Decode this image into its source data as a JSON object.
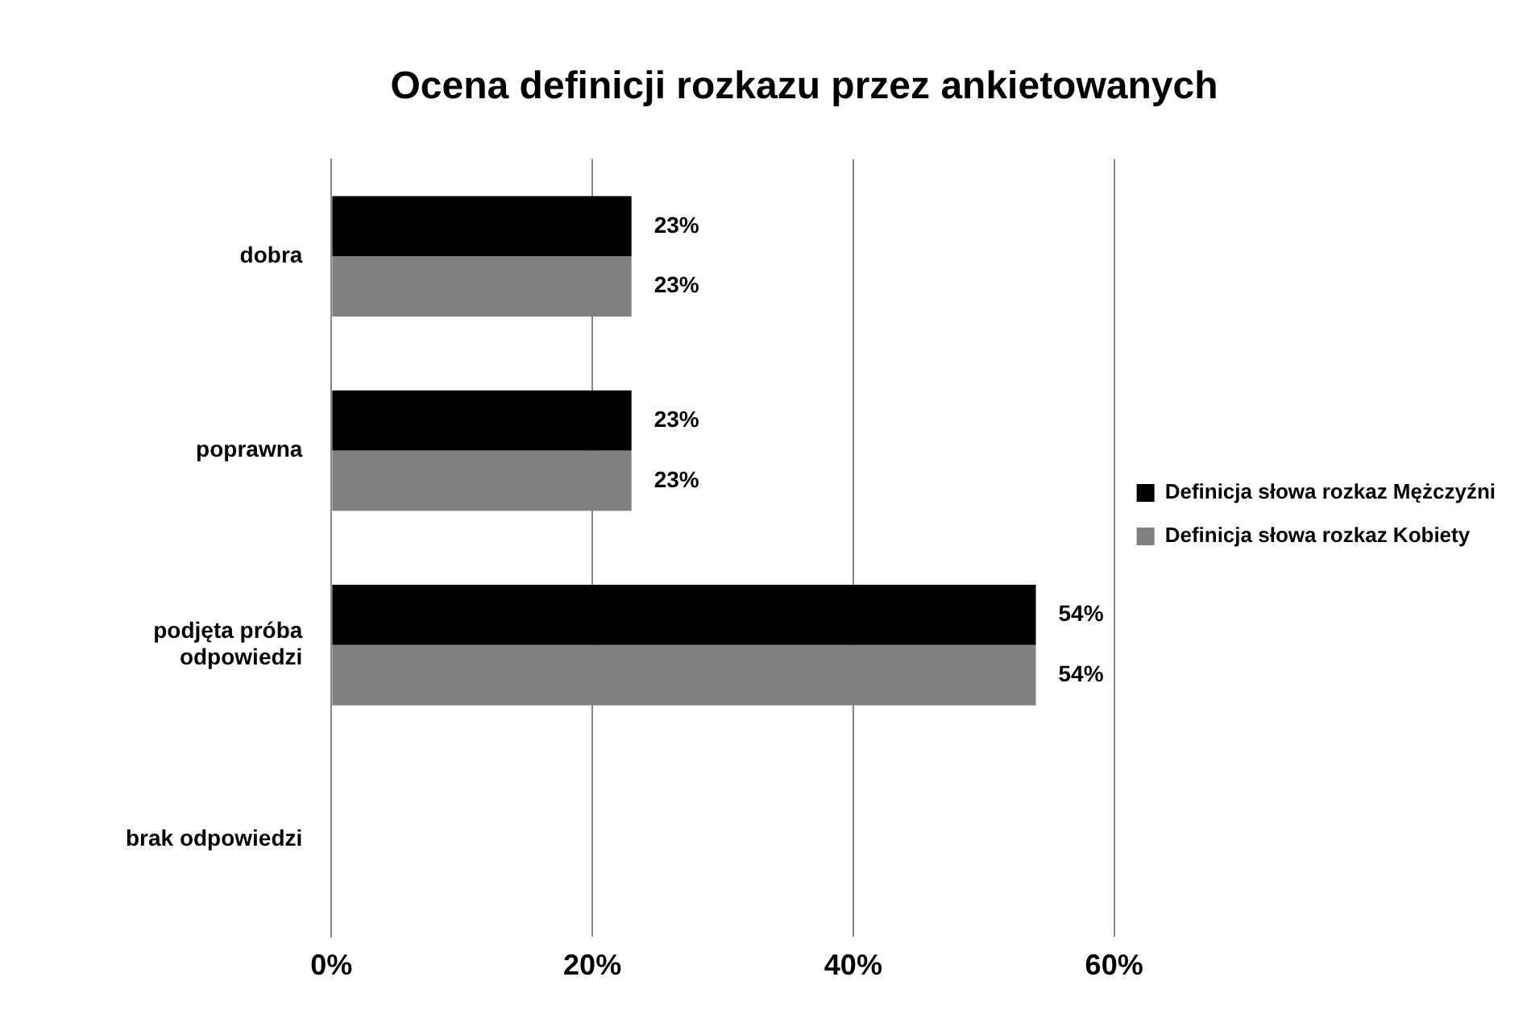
{
  "chart_data": {
    "type": "bar",
    "orientation": "horizontal",
    "title": "Ocena definicji rozkazu przez ankietowanych",
    "categories": [
      "dobra",
      "poprawna",
      "podjęta próba odpowiedzi",
      "brak odpowiedzi"
    ],
    "series": [
      {
        "name": "Definicja słowa rozkaz Mężczyźni",
        "color": "#000000",
        "values": [
          23,
          23,
          54,
          0
        ],
        "value_labels": [
          "23%",
          "23%",
          "54%",
          null
        ]
      },
      {
        "name": "Definicja słowa rozkaz Kobiety",
        "color": "#808080",
        "values": [
          23,
          23,
          54,
          0
        ],
        "value_labels": [
          "23%",
          "23%",
          "54%",
          null
        ]
      }
    ],
    "xlim": [
      0,
      60
    ],
    "xticks": [
      {
        "value": 0,
        "label": "0%"
      },
      {
        "value": 20,
        "label": "20%"
      },
      {
        "value": 40,
        "label": "40%"
      },
      {
        "value": 60,
        "label": "60%"
      }
    ],
    "grid": "x",
    "legend": "right"
  }
}
